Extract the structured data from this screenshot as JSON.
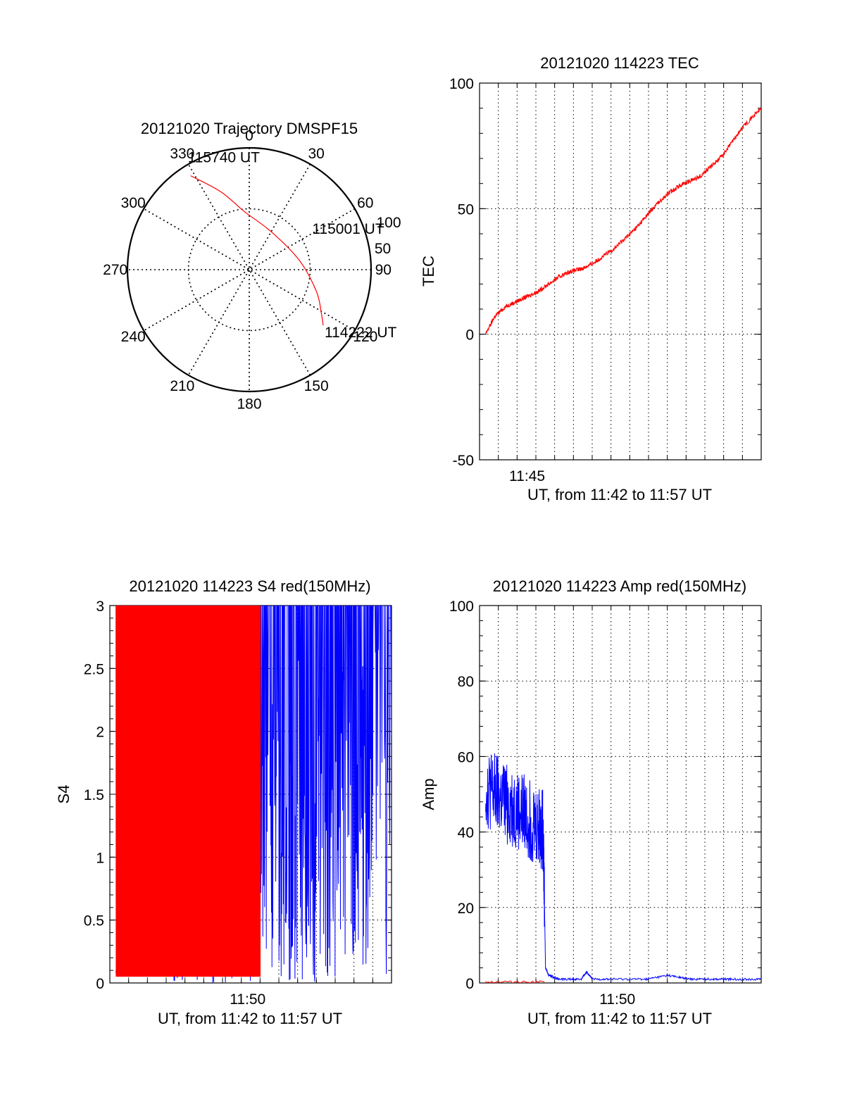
{
  "chart_data": [
    {
      "id": "trajectory",
      "type": "polar",
      "title": "20121020 Trajectory DMSPF15",
      "angle_labels": [
        "0",
        "30",
        "60",
        "90",
        "120",
        "150",
        "180",
        "210",
        "240",
        "270",
        "300",
        "330"
      ],
      "radial_labels": [
        "50",
        "100"
      ],
      "r_max": 100,
      "track_color": "#ff0000",
      "track": [
        {
          "az": 328,
          "r": 91
        },
        {
          "az": 340,
          "r": 68
        },
        {
          "az": 355,
          "r": 48
        },
        {
          "az": 30,
          "r": 36
        },
        {
          "az": 80,
          "r": 42
        },
        {
          "az": 108,
          "r": 58
        },
        {
          "az": 121,
          "r": 69
        },
        {
          "az": 127,
          "r": 76
        }
      ],
      "annotations": [
        {
          "text": "115740 UT",
          "az": 328,
          "r": 91
        },
        {
          "text": "115001 UT",
          "az": 63,
          "r": 32
        },
        {
          "text": "114222 UT",
          "az": 127,
          "r": 76
        }
      ]
    },
    {
      "id": "tec",
      "type": "line",
      "title": "20121020 114223 TEC",
      "ylabel": "TEC",
      "xlabel": "UT, from 11:42 to 11:57 UT",
      "xlim": [
        11.7061,
        11.9661
      ],
      "ylim": [
        -50,
        100
      ],
      "yticks": [
        -50,
        0,
        50,
        100
      ],
      "xticks": [
        {
          "label": "11:45",
          "value": 11.75
        }
      ],
      "series": [
        {
          "color": "#ff0000",
          "x": [
            11.7117,
            11.72,
            11.73,
            11.74,
            11.75,
            11.76,
            11.77,
            11.78,
            11.79,
            11.8,
            11.81,
            11.82,
            11.83,
            11.84,
            11.85,
            11.86,
            11.87,
            11.88,
            11.89,
            11.9,
            11.91,
            11.92,
            11.93,
            11.94,
            11.95,
            11.9661
          ],
          "y": [
            0,
            7,
            11,
            13,
            15,
            17,
            20,
            23,
            25,
            26,
            28,
            31,
            34,
            38,
            42,
            47,
            52,
            56,
            59,
            61,
            63,
            67,
            71,
            77,
            83,
            90
          ]
        }
      ]
    },
    {
      "id": "s4",
      "type": "line",
      "title": "20121020 114223 S4 red(150MHz)",
      "ylabel": "S4",
      "xlabel": "UT, from 11:42 to 11:57 UT",
      "xlim": [
        11.7061,
        11.9661
      ],
      "ylim": [
        0,
        3
      ],
      "yticks": [
        0,
        0.5,
        1,
        1.5,
        2,
        2.5,
        3
      ],
      "xticks": [
        {
          "label": "11:50",
          "value": 11.8333
        }
      ],
      "series": [
        {
          "color": "#0000ff",
          "x": [
            11.7117,
            11.72,
            11.73,
            11.74,
            11.75,
            11.76,
            11.765,
            11.77,
            11.78,
            11.79,
            11.8,
            11.81,
            11.82,
            11.83,
            11.84,
            11.85,
            11.86,
            11.87,
            11.88,
            11.89,
            11.9,
            11.91,
            11.92,
            11.93,
            11.94,
            11.95,
            11.9661
          ],
          "y": [
            0.08,
            0.08,
            0.09,
            0.08,
            0.09,
            0.08,
            0.1,
            1.1,
            2.6,
            0.35,
            2.8,
            1.5,
            2.5,
            2.9,
            2.2,
            3.0,
            2.4,
            1.6,
            2.7,
            0.6,
            2.5,
            2.0,
            2.8,
            1.9,
            2.6,
            2.9,
            2.4
          ]
        },
        {
          "color": "#ff0000",
          "x": [
            11.7117,
            11.72,
            11.73,
            11.74,
            11.75,
            11.76,
            11.77,
            11.78,
            11.79,
            11.8,
            11.81,
            11.82,
            11.83,
            11.84,
            11.845
          ],
          "y": [
            3.0,
            0.05,
            3.0,
            0.05,
            3.0,
            0.05,
            3.0,
            0.05,
            3.0,
            0.05,
            3.0,
            0.05,
            3.0,
            0.05,
            3.0
          ]
        }
      ]
    },
    {
      "id": "amp",
      "type": "line",
      "title": "20121020 114223 Amp red(150MHz)",
      "ylabel": "Amp",
      "xlabel": "UT, from 11:42 to 11:57 UT",
      "xlim": [
        11.7061,
        11.9661
      ],
      "ylim": [
        0,
        100
      ],
      "yticks": [
        0,
        20,
        40,
        60,
        80,
        100
      ],
      "xticks": [
        {
          "label": "11:50",
          "value": 11.8333
        }
      ],
      "series": [
        {
          "color": "#0000ff",
          "x": [
            11.7117,
            11.72,
            11.73,
            11.74,
            11.75,
            11.76,
            11.765,
            11.767,
            11.77,
            11.78,
            11.8,
            11.805,
            11.81,
            11.83,
            11.86,
            11.88,
            11.9,
            11.92,
            11.94,
            11.9661
          ],
          "y": [
            52,
            50,
            48,
            46,
            44,
            42,
            40,
            4,
            2,
            1,
            1,
            3,
            1,
            1,
            1,
            2,
            1,
            1,
            1,
            1
          ]
        },
        {
          "color": "#ff0000",
          "x": [
            11.7117,
            11.766
          ],
          "y": [
            0.3,
            0.3
          ]
        }
      ]
    }
  ]
}
